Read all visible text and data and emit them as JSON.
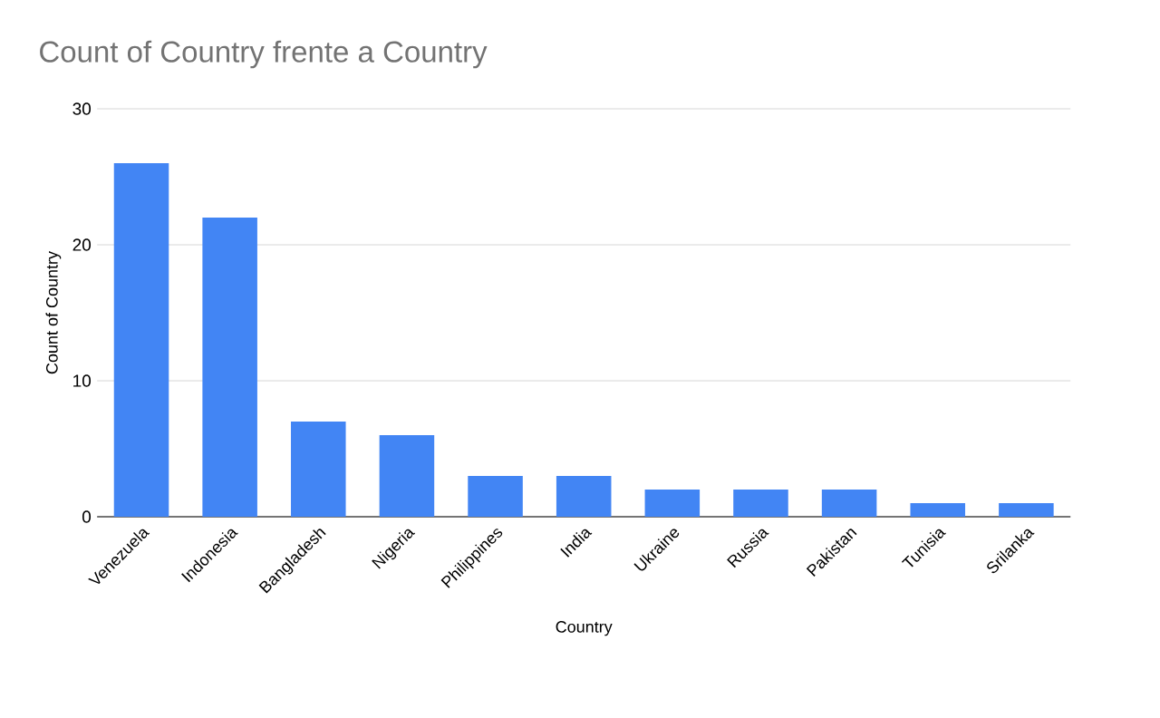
{
  "chart_data": {
    "type": "bar",
    "title": "Count of Country frente a Country",
    "xlabel": "Country",
    "ylabel": "Count of Country",
    "categories": [
      "Venezuela",
      "Indonesia",
      "Bangladesh",
      "Nigeria",
      "Philippines",
      "India",
      "Ukraine",
      "Russia",
      "Pakistan",
      "Tunisia",
      "Srilanka"
    ],
    "values": [
      26,
      22,
      7,
      6,
      3,
      3,
      2,
      2,
      2,
      1,
      1
    ],
    "color": "#4285f4",
    "ylim": [
      0,
      30
    ],
    "yticks": [
      0,
      10,
      20,
      30
    ],
    "grid": "y"
  }
}
